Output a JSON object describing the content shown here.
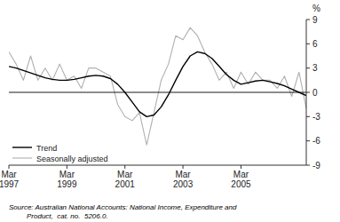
{
  "chart_data": {
    "type": "line",
    "ylabel": "%",
    "source": "Source: Australian National Accounts: National Income, Expenditure and\n         Product,  cat. no.  5206.0.",
    "categories": [
      "Mar\n1997",
      null,
      null,
      null,
      null,
      null,
      null,
      null,
      "Mar\n1999",
      null,
      null,
      null,
      null,
      null,
      null,
      null,
      "Mar\n2001",
      null,
      null,
      null,
      null,
      null,
      null,
      null,
      "Mar\n2003",
      null,
      null,
      null,
      null,
      null,
      null,
      null,
      "Mar\n2005",
      null,
      null,
      null,
      null,
      null,
      null,
      null,
      null,
      null
    ],
    "series": [
      {
        "name": "Trend",
        "color": "#000000",
        "values": [
          3.2,
          3.0,
          2.7,
          2.4,
          2.1,
          1.8,
          1.6,
          1.5,
          1.5,
          1.6,
          1.8,
          2.0,
          2.1,
          2.0,
          1.7,
          1.0,
          0.0,
          -1.2,
          -2.4,
          -3.0,
          -2.8,
          -1.8,
          -0.3,
          1.5,
          3.2,
          4.5,
          5.0,
          4.8,
          4.2,
          3.2,
          2.2,
          1.5,
          1.0,
          1.2,
          1.4,
          1.5,
          1.3,
          1.1,
          0.8,
          0.4,
          0.0,
          -0.4
        ]
      },
      {
        "name": "Seasonally adjusted",
        "color": "#b0b0b0",
        "values": [
          5.0,
          3.5,
          1.5,
          4.5,
          1.5,
          3.0,
          1.5,
          3.5,
          1.5,
          2.0,
          0.5,
          3.0,
          3.0,
          2.5,
          2.0,
          -1.5,
          -3.0,
          -3.5,
          -2.5,
          -6.5,
          -2.5,
          1.5,
          3.5,
          7.0,
          6.5,
          8.0,
          7.0,
          5.0,
          3.5,
          1.5,
          2.5,
          0.5,
          2.5,
          1.0,
          2.5,
          1.5,
          1.5,
          0.5,
          2.0,
          -0.5,
          2.5,
          -2.0
        ]
      }
    ],
    "ylim": [
      -9,
      9
    ],
    "yticks": [
      -9,
      -6,
      -3,
      0,
      3,
      6,
      9
    ],
    "grid": false,
    "legend": "lower left"
  }
}
